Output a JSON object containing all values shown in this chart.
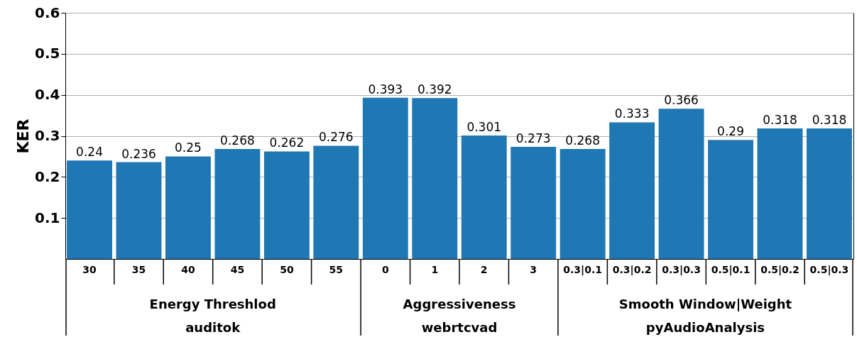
{
  "chart_data": {
    "type": "bar",
    "ylabel": "KER",
    "categories": [
      "30",
      "35",
      "40",
      "45",
      "50",
      "55",
      "0",
      "1",
      "2",
      "3",
      "0.3|0.1",
      "0.3|0.2",
      "0.3|0.3",
      "0.5|0.1",
      "0.5|0.2",
      "0.5|0.3"
    ],
    "values": [
      0.24,
      0.236,
      0.25,
      0.268,
      0.262,
      0.276,
      0.393,
      0.392,
      0.301,
      0.273,
      0.268,
      0.333,
      0.366,
      0.29,
      0.318,
      0.318
    ],
    "color": "#1f77b4",
    "ylim": [
      0,
      0.6
    ],
    "yticks": [
      0.1,
      0.2,
      0.3,
      0.4,
      0.5,
      0.6
    ],
    "grid": "y",
    "data_labels": true,
    "annotations": [
      "Energy Threshlod",
      "auditok",
      "Aggressiveness",
      "webrtcvad",
      "Smooth Window|Weight",
      "pyAudioAnalysis"
    ]
  }
}
